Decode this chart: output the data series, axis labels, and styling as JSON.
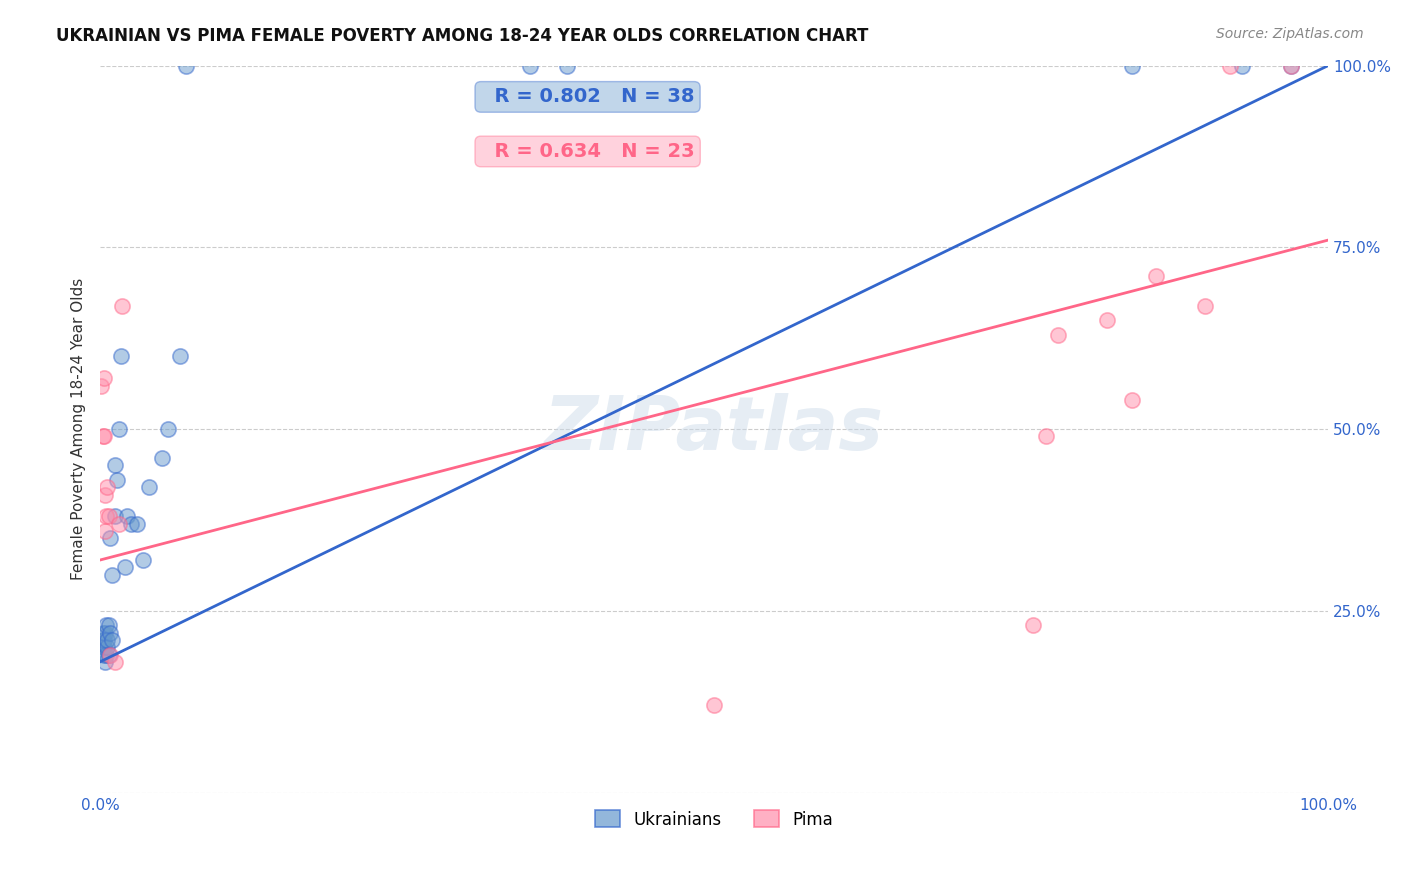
{
  "title": "UKRAINIAN VS PIMA FEMALE POVERTY AMONG 18-24 YEAR OLDS CORRELATION CHART",
  "source": "Source: ZipAtlas.com",
  "ylabel": "Female Poverty Among 18-24 Year Olds",
  "xlim": [
    0,
    1.0
  ],
  "ylim": [
    0,
    1.0
  ],
  "xticks": [
    0.0,
    0.25,
    0.5,
    0.75,
    1.0
  ],
  "yticks": [
    0.0,
    0.25,
    0.5,
    0.75,
    1.0
  ],
  "legend_entries": [
    "Ukrainians",
    "Pima"
  ],
  "blue_R": "R = 0.802",
  "blue_N": "N = 38",
  "pink_R": "R = 0.634",
  "pink_N": "N = 23",
  "blue_color": "#6699CC",
  "pink_color": "#FF8FAB",
  "blue_line_color": "#3366CC",
  "pink_line_color": "#FF6688",
  "tick_label_color": "#3366CC",
  "watermark_color": "#c8d8e8",
  "background_color": "#ffffff",
  "grid_color": "#cccccc",
  "scatter_alpha": 0.5,
  "scatter_size": 120,
  "blue_scatter_x": [
    0.002,
    0.002,
    0.002,
    0.003,
    0.003,
    0.003,
    0.004,
    0.004,
    0.005,
    0.005,
    0.006,
    0.006,
    0.007,
    0.007,
    0.008,
    0.008,
    0.01,
    0.01,
    0.012,
    0.012,
    0.014,
    0.015,
    0.017,
    0.02,
    0.022,
    0.025,
    0.03,
    0.035,
    0.04,
    0.05,
    0.055,
    0.065,
    0.07,
    0.35,
    0.38,
    0.84,
    0.93,
    0.97
  ],
  "blue_scatter_y": [
    0.2,
    0.21,
    0.22,
    0.19,
    0.2,
    0.21,
    0.18,
    0.22,
    0.19,
    0.23,
    0.2,
    0.21,
    0.19,
    0.23,
    0.22,
    0.35,
    0.21,
    0.3,
    0.38,
    0.45,
    0.43,
    0.5,
    0.6,
    0.31,
    0.38,
    0.37,
    0.37,
    0.32,
    0.42,
    0.46,
    0.5,
    0.6,
    1.0,
    1.0,
    1.0,
    1.0,
    1.0,
    1.0
  ],
  "pink_scatter_x": [
    0.001,
    0.002,
    0.003,
    0.003,
    0.004,
    0.004,
    0.005,
    0.006,
    0.007,
    0.008,
    0.012,
    0.015,
    0.018,
    0.5,
    0.76,
    0.77,
    0.78,
    0.82,
    0.84,
    0.86,
    0.9,
    0.92,
    0.97
  ],
  "pink_scatter_y": [
    0.56,
    0.49,
    0.49,
    0.57,
    0.36,
    0.41,
    0.38,
    0.42,
    0.38,
    0.19,
    0.18,
    0.37,
    0.67,
    0.12,
    0.23,
    0.49,
    0.63,
    0.65,
    0.54,
    0.71,
    0.67,
    1.0,
    1.0
  ],
  "blue_trendline": [
    [
      0.0,
      0.18
    ],
    [
      1.0,
      1.0
    ]
  ],
  "pink_trendline": [
    [
      0.0,
      0.32
    ],
    [
      1.0,
      0.76
    ]
  ]
}
